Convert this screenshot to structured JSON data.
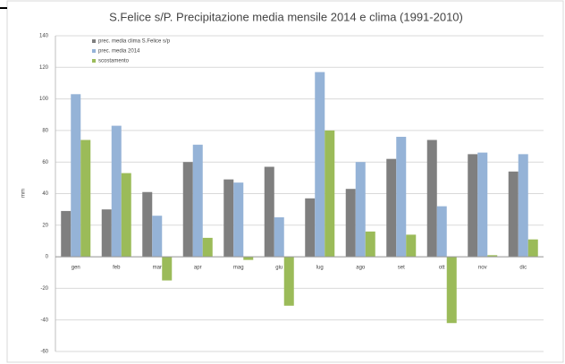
{
  "chart_data": {
    "type": "bar",
    "title": "S.Felice s/P.  Precipitazione  media mensile 2014 e clima (1991-2010)",
    "y_label": "mm",
    "categories": [
      "gen",
      "feb",
      "mar",
      "apr",
      "mag",
      "giu",
      "lug",
      "ago",
      "set",
      "ott",
      "nov",
      "dic"
    ],
    "series": [
      {
        "name": "prec. media clima S.Felice s/p",
        "color": "#7f7f7f",
        "values": [
          29,
          30,
          41,
          60,
          49,
          57,
          37,
          43,
          62,
          74,
          65,
          54
        ]
      },
      {
        "name": "prec. media 2014",
        "color": "#95b3d7",
        "values": [
          103,
          83,
          26,
          71,
          47,
          25,
          117,
          60,
          76,
          32,
          66,
          65
        ]
      },
      {
        "name": "scostamento",
        "color": "#9bbb59",
        "values": [
          74,
          53,
          -15,
          12,
          -2,
          -31,
          80,
          16,
          14,
          -42,
          1,
          11
        ]
      }
    ],
    "ylim": [
      -60,
      140
    ],
    "yticks": [
      -60,
      -40,
      -20,
      0,
      20,
      40,
      60,
      80,
      100,
      120,
      140
    ],
    "grid": true
  }
}
